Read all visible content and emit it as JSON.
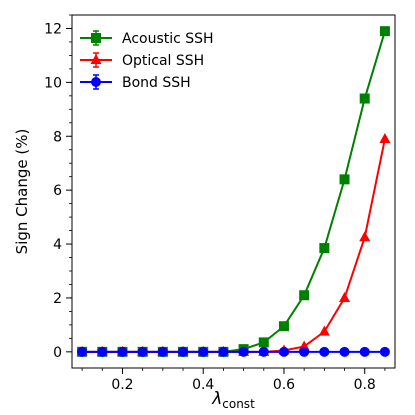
{
  "chart_data": {
    "type": "line",
    "xlabel": "λ",
    "xlabel_sub": "const",
    "ylabel": "Sign Change (%)",
    "xlim": [
      0.075,
      0.875
    ],
    "ylim": [
      -0.6,
      12.5
    ],
    "x_ticks": [
      0.2,
      0.4,
      0.6,
      0.8
    ],
    "x_tick_labels": [
      "0.2",
      "0.4",
      "0.6",
      "0.8"
    ],
    "y_ticks": [
      0,
      2,
      4,
      6,
      8,
      10,
      12
    ],
    "y_tick_labels": [
      "0",
      "2",
      "4",
      "6",
      "8",
      "10",
      "12"
    ],
    "x_minor_step": 0.05,
    "y_minor_step": 0.5,
    "grid": false,
    "legend_position": "top-left",
    "x": [
      0.1,
      0.15,
      0.2,
      0.25,
      0.3,
      0.35,
      0.4,
      0.45,
      0.5,
      0.55,
      0.6,
      0.65,
      0.7,
      0.75,
      0.8,
      0.85
    ],
    "series": [
      {
        "name": "Acoustic SSH",
        "color": "#008000",
        "marker": "square",
        "values": [
          0,
          0,
          0,
          0,
          0,
          0,
          0,
          0,
          0.1,
          0.35,
          0.95,
          2.1,
          3.85,
          6.4,
          9.4,
          11.9
        ]
      },
      {
        "name": "Optical SSH",
        "color": "#ff0000",
        "marker": "triangle",
        "values": [
          0,
          0,
          0,
          0,
          0,
          0,
          0,
          0,
          0,
          0,
          0.05,
          0.2,
          0.75,
          2.0,
          4.25,
          7.9
        ]
      },
      {
        "name": "Bond SSH",
        "color": "#0000ff",
        "marker": "circle",
        "values": [
          0,
          0,
          0,
          0,
          0,
          0,
          0,
          0,
          0,
          0,
          0,
          0,
          0,
          0,
          0,
          0
        ]
      }
    ]
  }
}
